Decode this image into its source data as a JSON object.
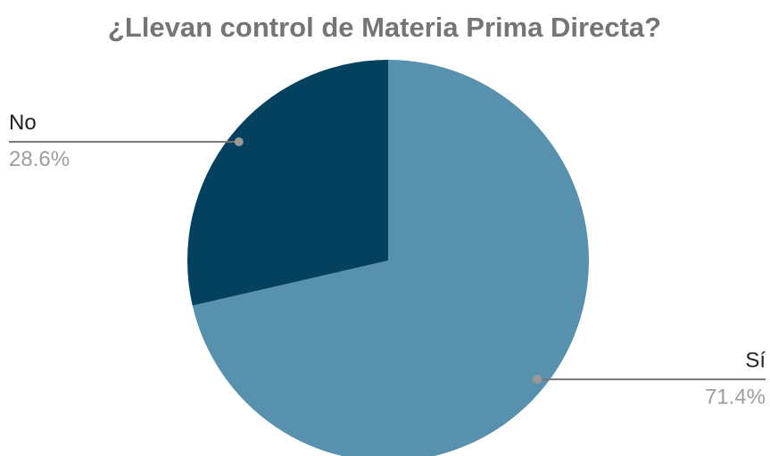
{
  "chart_data": {
    "type": "pie",
    "title": "¿Llevan control de Materia Prima Directa?",
    "categories": [
      "Sí",
      "No"
    ],
    "values": [
      71.4,
      28.6
    ],
    "value_labels": [
      "71.4%",
      "28.6%"
    ],
    "colors": [
      "#5891ae",
      "#03415f"
    ]
  }
}
